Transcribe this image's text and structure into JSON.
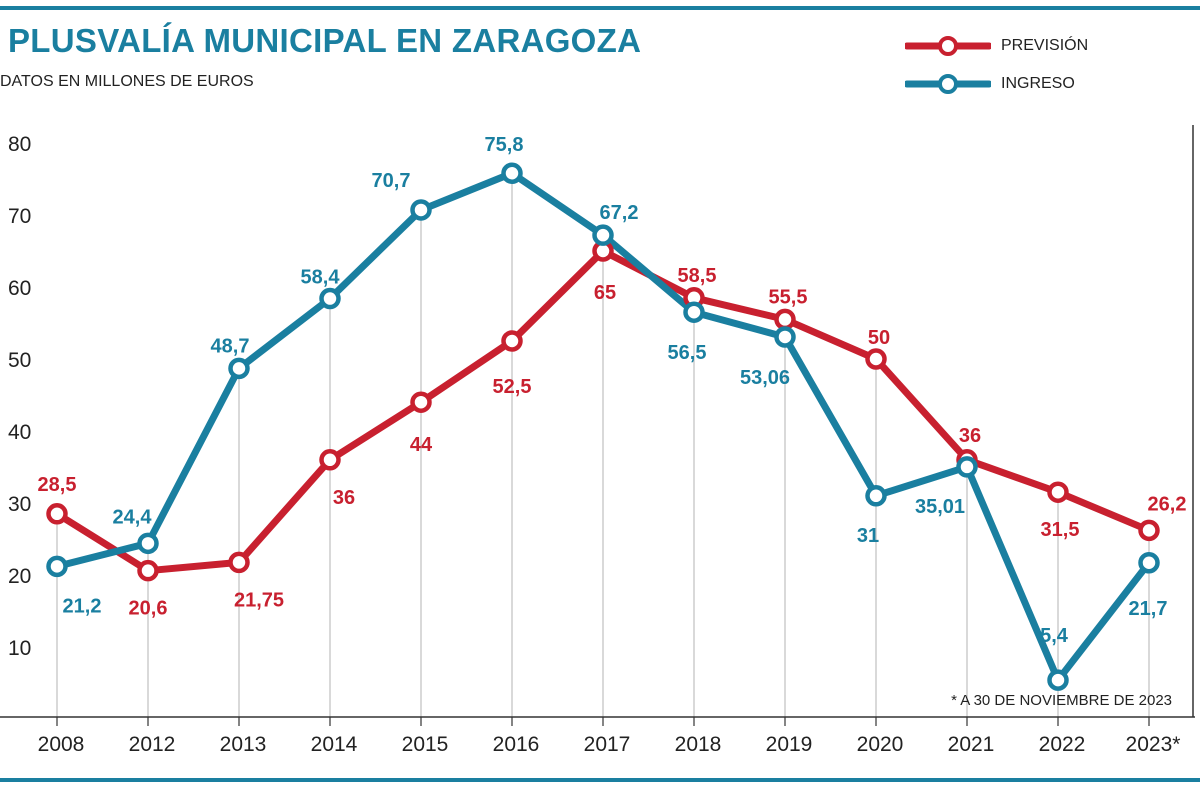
{
  "chart_data": {
    "type": "line",
    "title": "PLUSVALÍA MUNICIPAL EN ZARAGOZA",
    "subtitle": "DATOS EN MILLONES DE EUROS",
    "categories": [
      "2008",
      "2012",
      "2013",
      "2014",
      "2015",
      "2016",
      "2017",
      "2018",
      "2019",
      "2020",
      "2021",
      "2022",
      "2023*"
    ],
    "ylim": [
      0,
      80
    ],
    "yticks": [
      "10",
      "20",
      "30",
      "40",
      "50",
      "60",
      "70",
      "80"
    ],
    "series": [
      {
        "name": "PREVISIÓN",
        "color": "#c8202f",
        "values": [
          28.5,
          20.6,
          21.75,
          36,
          44,
          52.5,
          65,
          58.5,
          55.5,
          50,
          36,
          31.5,
          26.2
        ],
        "labels": [
          "28,5",
          "20,6",
          "21,75",
          "36",
          "44",
          "52,5",
          "65",
          "58,5",
          "55,5",
          "50",
          "36",
          "31,5",
          "26,2"
        ]
      },
      {
        "name": "INGRESO",
        "color": "#1a7fa0",
        "values": [
          21.2,
          24.4,
          48.7,
          58.4,
          70.7,
          75.8,
          67.2,
          56.5,
          53.06,
          31,
          35.01,
          5.4,
          21.7
        ],
        "labels": [
          "21,2",
          "24,4",
          "48,7",
          "58,4",
          "70,7",
          "75,8",
          "67,2",
          "56,5",
          "53,06",
          "31",
          "35,01",
          "5,4",
          "21,7"
        ]
      }
    ],
    "footnote": "* A 30 DE NOVIEMBRE DE 2023"
  },
  "colors": {
    "accent": "#1a7fa0",
    "previsión": "#c8202f",
    "ingreso": "#1a7fa0"
  }
}
